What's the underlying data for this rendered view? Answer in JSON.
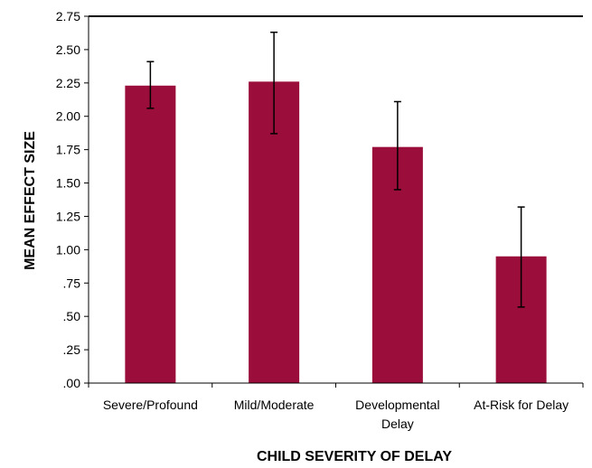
{
  "chart_data": {
    "type": "bar",
    "title": "",
    "xlabel": "CHILD SEVERITY OF DELAY",
    "ylabel": "MEAN EFFECT SIZE",
    "ylim": [
      0,
      2.75
    ],
    "yticks": [
      0,
      0.25,
      0.5,
      0.75,
      1.0,
      1.25,
      1.5,
      1.75,
      2.0,
      2.25,
      2.5,
      2.75
    ],
    "ytick_labels": [
      ".00",
      ".25",
      ".50",
      ".75",
      "1.00",
      "1.25",
      "1.50",
      "1.75",
      "2.00",
      "2.25",
      "2.50",
      "2.75"
    ],
    "categories": [
      "Severe/Profound",
      "Mild/Moderate",
      "Developmental Delay",
      "At-Risk for Delay"
    ],
    "category_lines": [
      [
        "Severe/Profound"
      ],
      [
        "Mild/Moderate"
      ],
      [
        "Developmental",
        "Delay"
      ],
      [
        "At-Risk for Delay"
      ]
    ],
    "values": [
      2.23,
      2.26,
      1.77,
      0.95
    ],
    "error_low": [
      2.06,
      1.87,
      1.45,
      0.57
    ],
    "error_high": [
      2.41,
      2.63,
      2.11,
      1.32
    ],
    "grid": false,
    "legend": "none",
    "colors": {
      "bar": "#9B0D3A",
      "axis": "#000000",
      "error": "#000000"
    }
  }
}
